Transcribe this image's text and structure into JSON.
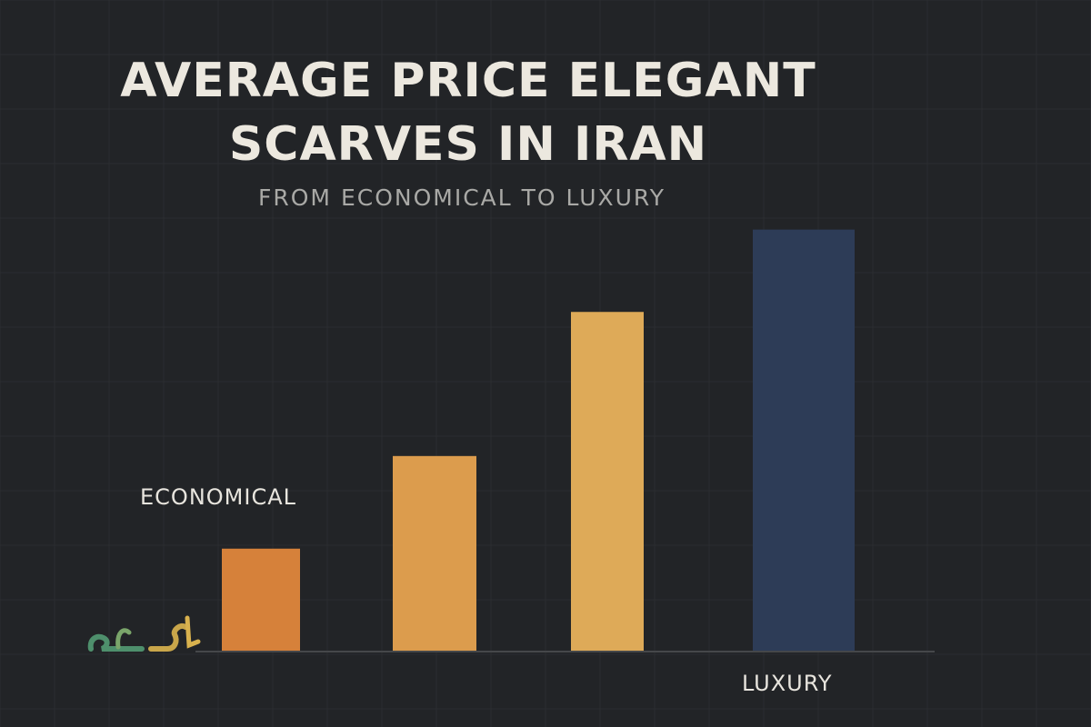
{
  "chart_data": {
    "type": "bar",
    "title": "AVERAGE PRICE ELEGANT SCARVES IN IRAN",
    "subtitle": "FROM ECONOMICAL TO LUXURY",
    "categories": [
      "ECONOMICAL",
      "",
      "",
      "LUXURY"
    ],
    "values": [
      1.0,
      1.9,
      3.3,
      4.1
    ],
    "colors": [
      "#d6813a",
      "#dc9c4d",
      "#deaa58",
      "#2d3c57"
    ],
    "ylim": [
      0,
      4.3
    ],
    "grid": true,
    "legend": "none"
  },
  "logo": {
    "text": "آشال",
    "color": "#4e8f6c"
  }
}
